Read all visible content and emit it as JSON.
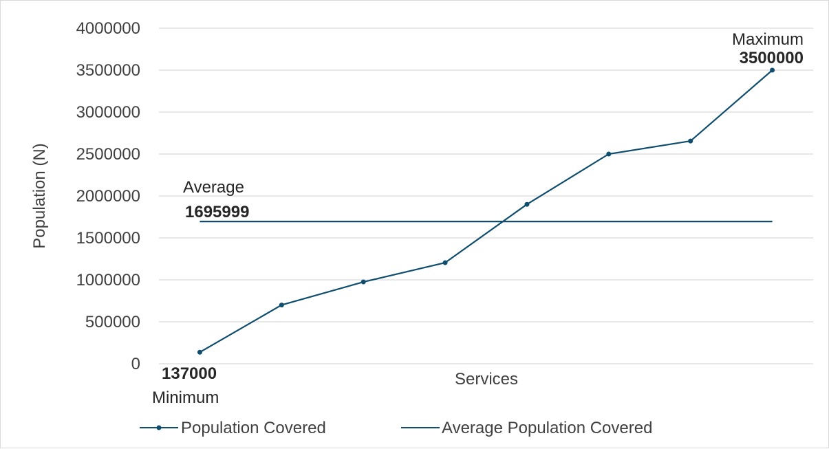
{
  "chart_data": {
    "type": "line",
    "title": "",
    "xlabel": "Services",
    "ylabel": "Population (N)",
    "ylim": [
      0,
      4000000
    ],
    "yticks": [
      0,
      500000,
      1000000,
      1500000,
      2000000,
      2500000,
      3000000,
      3500000,
      4000000
    ],
    "grid": true,
    "legend_position": "bottom",
    "x": [
      1,
      2,
      3,
      4,
      5,
      6,
      7,
      8
    ],
    "series": [
      {
        "name": "Population Covered",
        "color": "#0e4d6e",
        "markers": true,
        "values": [
          137000,
          700000,
          975000,
          1205000,
          1900000,
          2500000,
          2655000,
          3500000
        ]
      },
      {
        "name": "Average Population Covered",
        "color": "#0e4d6e",
        "markers": false,
        "values": [
          1695999,
          1695999,
          1695999,
          1695999,
          1695999,
          1695999,
          1695999,
          1695999
        ]
      }
    ],
    "annotations": {
      "min_value": "137000",
      "min_label": "Minimum",
      "max_value": "3500000",
      "max_label": "Maximum",
      "avg_label": "Average",
      "avg_value": "1695999"
    }
  }
}
